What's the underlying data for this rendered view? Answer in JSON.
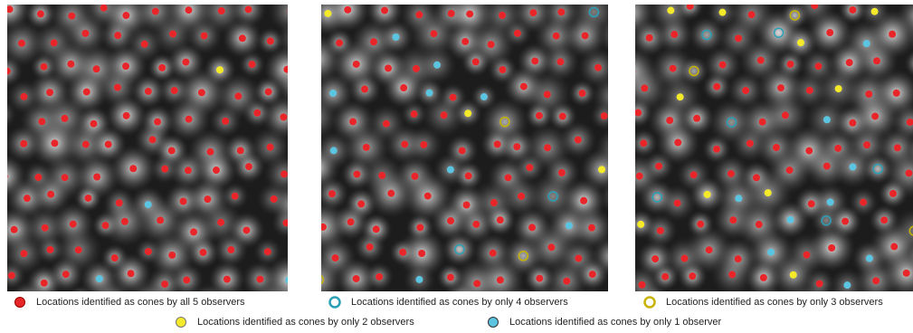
{
  "legend": {
    "items": [
      "Locations identified as cones by all 5 observers",
      "Locations identified as cones by only 4 observers",
      "Locations identified as cones by only 3 observers",
      "Locations identified as cones by only 2 observers",
      "Locations identified as cones by only 1 observer"
    ]
  }
}
